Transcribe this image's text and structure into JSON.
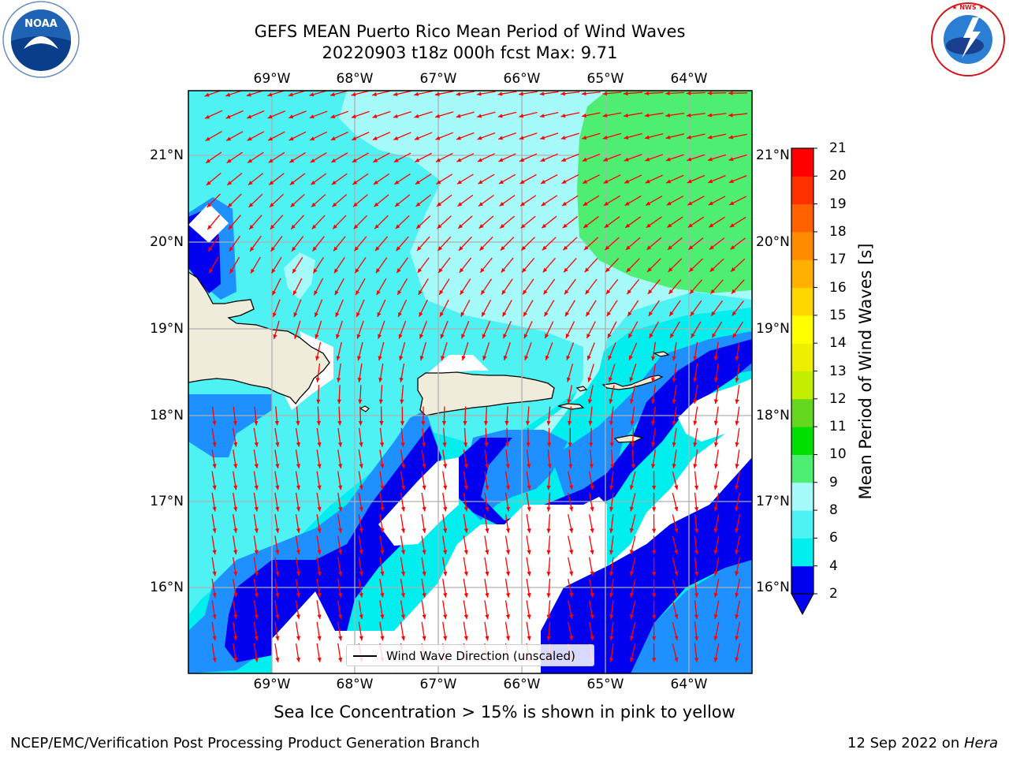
{
  "title": {
    "line1": "GEFS MEAN Puerto Rico Mean Period of Wind Waves",
    "line2": "20220903 t18z 000h fcst   Max: 9.71"
  },
  "logos": {
    "left": {
      "text": "NOAA",
      "ring_text": "NATIONAL OCEANIC AND ATMOSPHERIC ADMINISTRATION · U.S. DEPARTMENT OF COMMERCE",
      "icon": "noaa-logo"
    },
    "right": {
      "ring_text": "NATIONAL WEATHER SERVICE",
      "icon": "nws-logo"
    }
  },
  "map": {
    "lon_labels": [
      "69°W",
      "68°W",
      "67°W",
      "66°W",
      "65°W",
      "64°W"
    ],
    "lat_labels": [
      "21°N",
      "20°N",
      "19°N",
      "18°N",
      "17°N",
      "16°N"
    ],
    "legend": "Wind Wave Direction (unscaled)",
    "land_color": "#efecdc",
    "arrow_color": "#ff0000"
  },
  "colorbar": {
    "title": "Mean Period of Wind Waves [s]",
    "levels": [
      "2",
      "4",
      "6",
      "8",
      "9",
      "10",
      "11",
      "12",
      "13",
      "14",
      "15",
      "16",
      "17",
      "18",
      "19",
      "20",
      "21"
    ],
    "colors": [
      "#0000ee",
      "#1e90ff",
      "#00eeee",
      "#4ef2f2",
      "#a6fafa",
      "#4eee72",
      "#00e000",
      "#66d71f",
      "#c4ee00",
      "#eeee00",
      "#ffff00",
      "#ffd700",
      "#ffb000",
      "#ff8c00",
      "#ff6000",
      "#ff3000",
      "#ff0000"
    ]
  },
  "caption": "Sea Ice Concentration > 15% is shown in pink to yellow",
  "footer": {
    "left": "NCEP/EMC/Verification Post Processing Product Generation Branch",
    "right_prefix": "12 Sep 2022 on ",
    "right_host": "Hera"
  }
}
